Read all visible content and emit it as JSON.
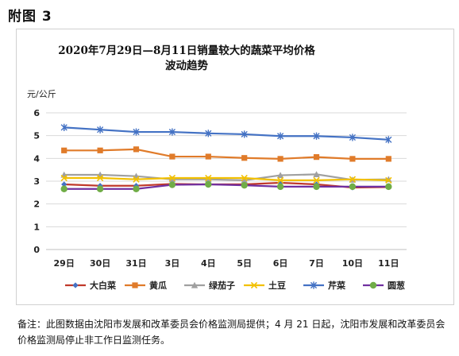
{
  "heading": "附图 3",
  "chart_data": {
    "type": "line",
    "title_line1": "2020年7月29日—8月11日销量较大的蔬菜平均价格",
    "title_line2": "波动趋势",
    "ylabel": "元/公斤",
    "xlabel": "",
    "categories": [
      "29日",
      "30日",
      "31日",
      "3日",
      "4日",
      "5日",
      "6日",
      "7日",
      "10日",
      "11日"
    ],
    "ylim": [
      0,
      6
    ],
    "yticks": [
      "0",
      "1",
      "2",
      "3",
      "4",
      "5",
      "6"
    ],
    "grid": true,
    "legend_position": "bottom",
    "series": [
      {
        "name": "大白菜",
        "color": "#c0392b",
        "marker": "diamond",
        "marker_color": "#4472c4",
        "values": [
          2.86,
          2.8,
          2.8,
          2.88,
          2.86,
          2.86,
          2.93,
          2.86,
          2.72,
          2.74
        ]
      },
      {
        "name": "黄瓜",
        "color": "#e07b2a",
        "marker": "square",
        "marker_color": "#e07b2a",
        "values": [
          4.35,
          4.35,
          4.4,
          4.08,
          4.08,
          4.02,
          3.98,
          4.06,
          3.98,
          3.98
        ]
      },
      {
        "name": "绿茄子",
        "color": "#a0a0a0",
        "marker": "triangle",
        "marker_color": "#a0a0a0",
        "values": [
          3.28,
          3.28,
          3.22,
          3.08,
          3.08,
          3.04,
          3.26,
          3.3,
          3.06,
          3.08
        ]
      },
      {
        "name": "土豆",
        "color": "#f2c000",
        "marker": "x",
        "marker_color": "#f2c000",
        "values": [
          3.14,
          3.14,
          3.08,
          3.14,
          3.14,
          3.14,
          3.04,
          3.04,
          3.08,
          3.04
        ]
      },
      {
        "name": "芹菜",
        "color": "#4472c4",
        "marker": "star",
        "marker_color": "#4472c4",
        "values": [
          5.36,
          5.26,
          5.16,
          5.16,
          5.1,
          5.06,
          4.98,
          4.98,
          4.92,
          4.82
        ]
      },
      {
        "name": "圆葱",
        "color": "#7030a0",
        "marker": "circle",
        "marker_color": "#70ad47",
        "values": [
          2.66,
          2.66,
          2.66,
          2.84,
          2.86,
          2.82,
          2.76,
          2.76,
          2.76,
          2.76
        ]
      }
    ]
  },
  "note": "备注：此图数据由沈阳市发展和改革委员会价格监测局提供；4 月 21 日起，沈阳市发展和改革委员会价格监测局停止非工作日监测任务。"
}
